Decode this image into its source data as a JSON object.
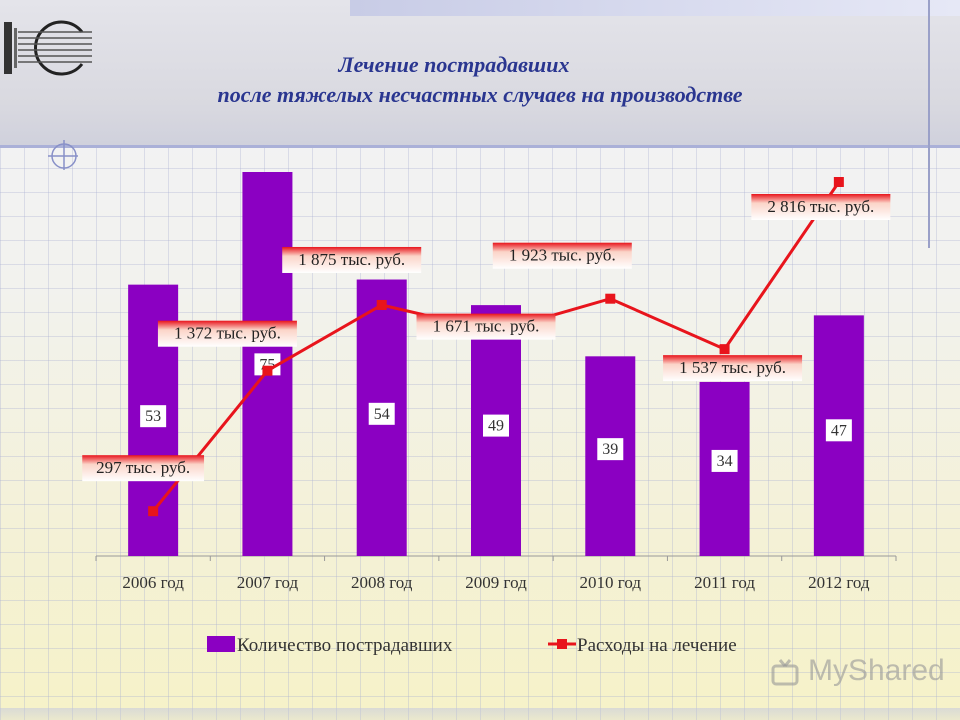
{
  "title": {
    "line1": "Лечение пострадавших",
    "line2": "после тяжелых несчастных случаев на производстве"
  },
  "watermark": "MyShared",
  "colors": {
    "bar": "#8b00c2",
    "line": "#e8141c",
    "title": "#2a3690"
  },
  "chart_data": {
    "type": "bar",
    "categories": [
      "2006 год",
      "2007 год",
      "2008 год",
      "2009 год",
      "2010 год",
      "2011 год",
      "2012 год"
    ],
    "series": [
      {
        "name": "Количество пострадавших",
        "type": "bar",
        "values": [
          53,
          75,
          54,
          49,
          39,
          34,
          47
        ],
        "labels": [
          "53",
          "75",
          "54",
          "49",
          "39",
          "34",
          "47"
        ]
      },
      {
        "name": "Расходы на лечение",
        "type": "line",
        "values": [
          297,
          1372,
          1875,
          1671,
          1923,
          1537,
          2816
        ],
        "labels": [
          "297 тыс. руб.",
          "1 372 тыс. руб.",
          "1 875 тыс. руб.",
          "1 671 тыс. руб.",
          "1 923 тыс. руб.",
          "1 537 тыс. руб.",
          "2 816 тыс. руб."
        ]
      }
    ],
    "legend_position": "bottom",
    "grid": false,
    "ylim_bars": [
      0,
      80
    ],
    "ylim_line": [
      0,
      3000
    ]
  }
}
